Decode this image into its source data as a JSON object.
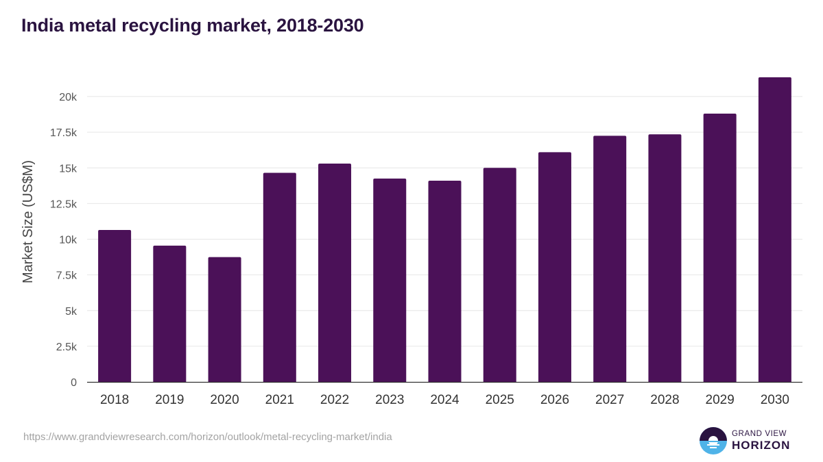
{
  "title": "India metal recycling market, 2018-2030",
  "source": "https://www.grandviewresearch.com/horizon/outlook/metal-recycling-market/india",
  "brand": {
    "line1": "GRAND VIEW",
    "line2": "HORIZON"
  },
  "colors": {
    "bar": "#4b1158",
    "title": "#2a1340",
    "grid": "#e6e6e6",
    "axis": "#333333",
    "tick_text": "#555555",
    "brand_dark": "#2a1340",
    "brand_light": "#4fb3e8"
  },
  "chart_data": {
    "type": "bar",
    "title": "India metal recycling market, 2018-2030",
    "xlabel": "",
    "ylabel": "Market Size (US$M)",
    "ylim": [
      0,
      22000
    ],
    "grid": true,
    "legend": "none",
    "categories": [
      "2018",
      "2019",
      "2020",
      "2021",
      "2022",
      "2023",
      "2024",
      "2025",
      "2026",
      "2027",
      "2028",
      "2029",
      "2030"
    ],
    "values": [
      10650,
      9550,
      8750,
      14650,
      15300,
      14250,
      14100,
      15000,
      16100,
      17250,
      17350,
      18800,
      21350
    ],
    "y_ticks": [
      {
        "value": 0,
        "label": "0"
      },
      {
        "value": 2500,
        "label": "2.5k"
      },
      {
        "value": 5000,
        "label": "5k"
      },
      {
        "value": 7500,
        "label": "7.5k"
      },
      {
        "value": 10000,
        "label": "10k"
      },
      {
        "value": 12500,
        "label": "12.5k"
      },
      {
        "value": 15000,
        "label": "15k"
      },
      {
        "value": 17500,
        "label": "17.5k"
      },
      {
        "value": 20000,
        "label": "20k"
      }
    ]
  }
}
